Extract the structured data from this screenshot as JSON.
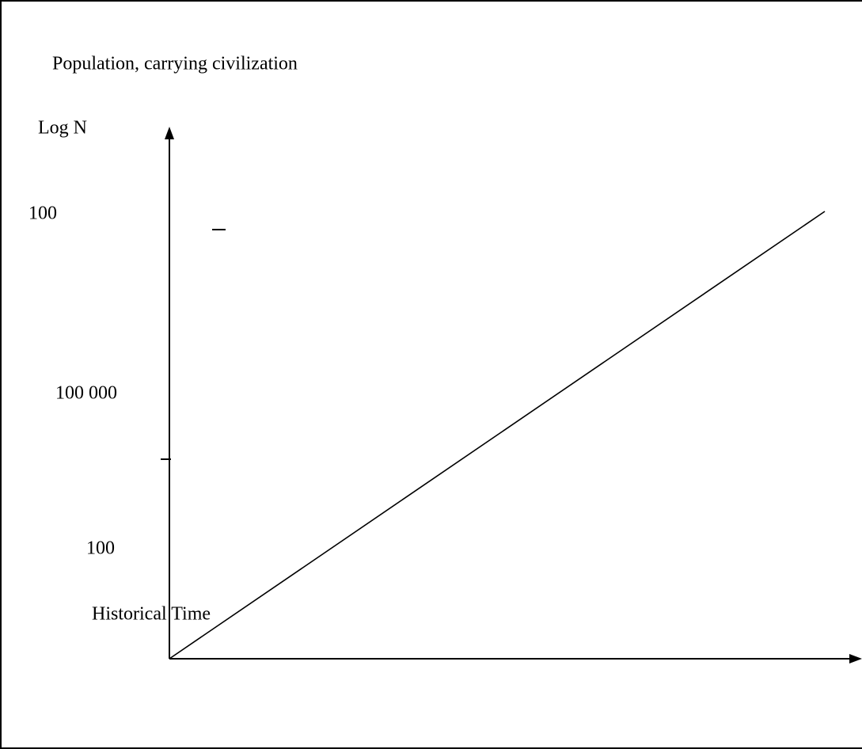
{
  "title": "Population, carrying civilization",
  "y_axis": {
    "label": "Log N",
    "labels": [
      "100",
      "100 000",
      "100"
    ]
  },
  "x_axis": {
    "label": "Historical Time"
  }
}
